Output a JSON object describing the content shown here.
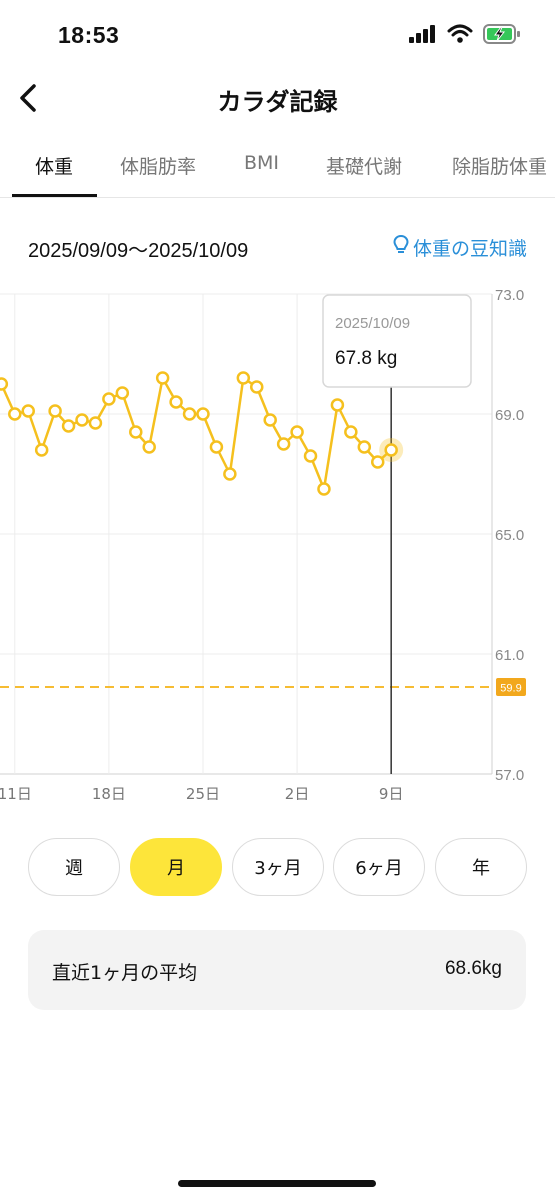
{
  "status_bar": {
    "time": "18:53",
    "icons": [
      "signal-icon",
      "wifi-icon",
      "battery-charging-icon"
    ]
  },
  "nav": {
    "title": "カラダ記録",
    "back_icon": "chevron-left-icon"
  },
  "tabs": [
    {
      "label": "体重",
      "active": true
    },
    {
      "label": "体脂肪率",
      "active": false
    },
    {
      "label": "BMI",
      "active": false
    },
    {
      "label": "基礎代謝",
      "active": false
    },
    {
      "label": "除脂肪体重",
      "active": false
    }
  ],
  "header": {
    "date_range": "2025/09/09〜2025/10/09",
    "tips_label": "体重の豆知識",
    "tips_icon": "lightbulb-icon"
  },
  "tooltip": {
    "date": "2025/10/09",
    "value": "67.8 kg"
  },
  "chart_data": {
    "type": "line",
    "y_ticks": [
      "73.0",
      "69.0",
      "65.0",
      "61.0",
      "57.0"
    ],
    "ylim": [
      57.0,
      73.0
    ],
    "x_tick_labels": [
      "11日",
      "18日",
      "25日",
      "2日",
      "9日"
    ],
    "x_tick_dates": [
      11,
      18,
      25,
      32,
      39
    ],
    "xlim": [
      9.9,
      46.5
    ],
    "target_line": {
      "value": 59.9,
      "label": "59.9"
    },
    "series": [
      {
        "x": [
          9.1,
          10,
          11,
          12,
          13,
          14,
          15,
          16,
          17,
          18,
          19,
          20,
          21,
          22,
          23,
          24,
          25,
          26,
          27,
          28,
          29,
          30,
          31,
          32,
          33,
          34,
          35,
          36,
          37,
          38,
          39
        ],
        "values": [
          69.9,
          70.0,
          69.0,
          69.1,
          67.8,
          69.1,
          68.6,
          68.8,
          68.7,
          69.5,
          69.7,
          68.4,
          67.9,
          70.2,
          69.4,
          69.0,
          69.0,
          67.9,
          67.0,
          70.2,
          69.9,
          68.8,
          68.0,
          68.4,
          67.6,
          66.5,
          69.3,
          68.4,
          67.9,
          67.4,
          67.8
        ]
      }
    ],
    "selected_x": 39,
    "colors": {
      "line": "#f5c01e",
      "target": "#f5b216",
      "target_label_bg": "#f2a81d",
      "cursor": "#333333"
    },
    "grid": true
  },
  "periods": [
    {
      "label": "週",
      "active": false
    },
    {
      "label": "月",
      "active": true
    },
    {
      "label": "3ヶ月",
      "active": false
    },
    {
      "label": "6ヶ月",
      "active": false
    },
    {
      "label": "年",
      "active": false
    }
  ],
  "average": {
    "label": "直近1ヶ月の平均",
    "value": "68.6kg"
  }
}
